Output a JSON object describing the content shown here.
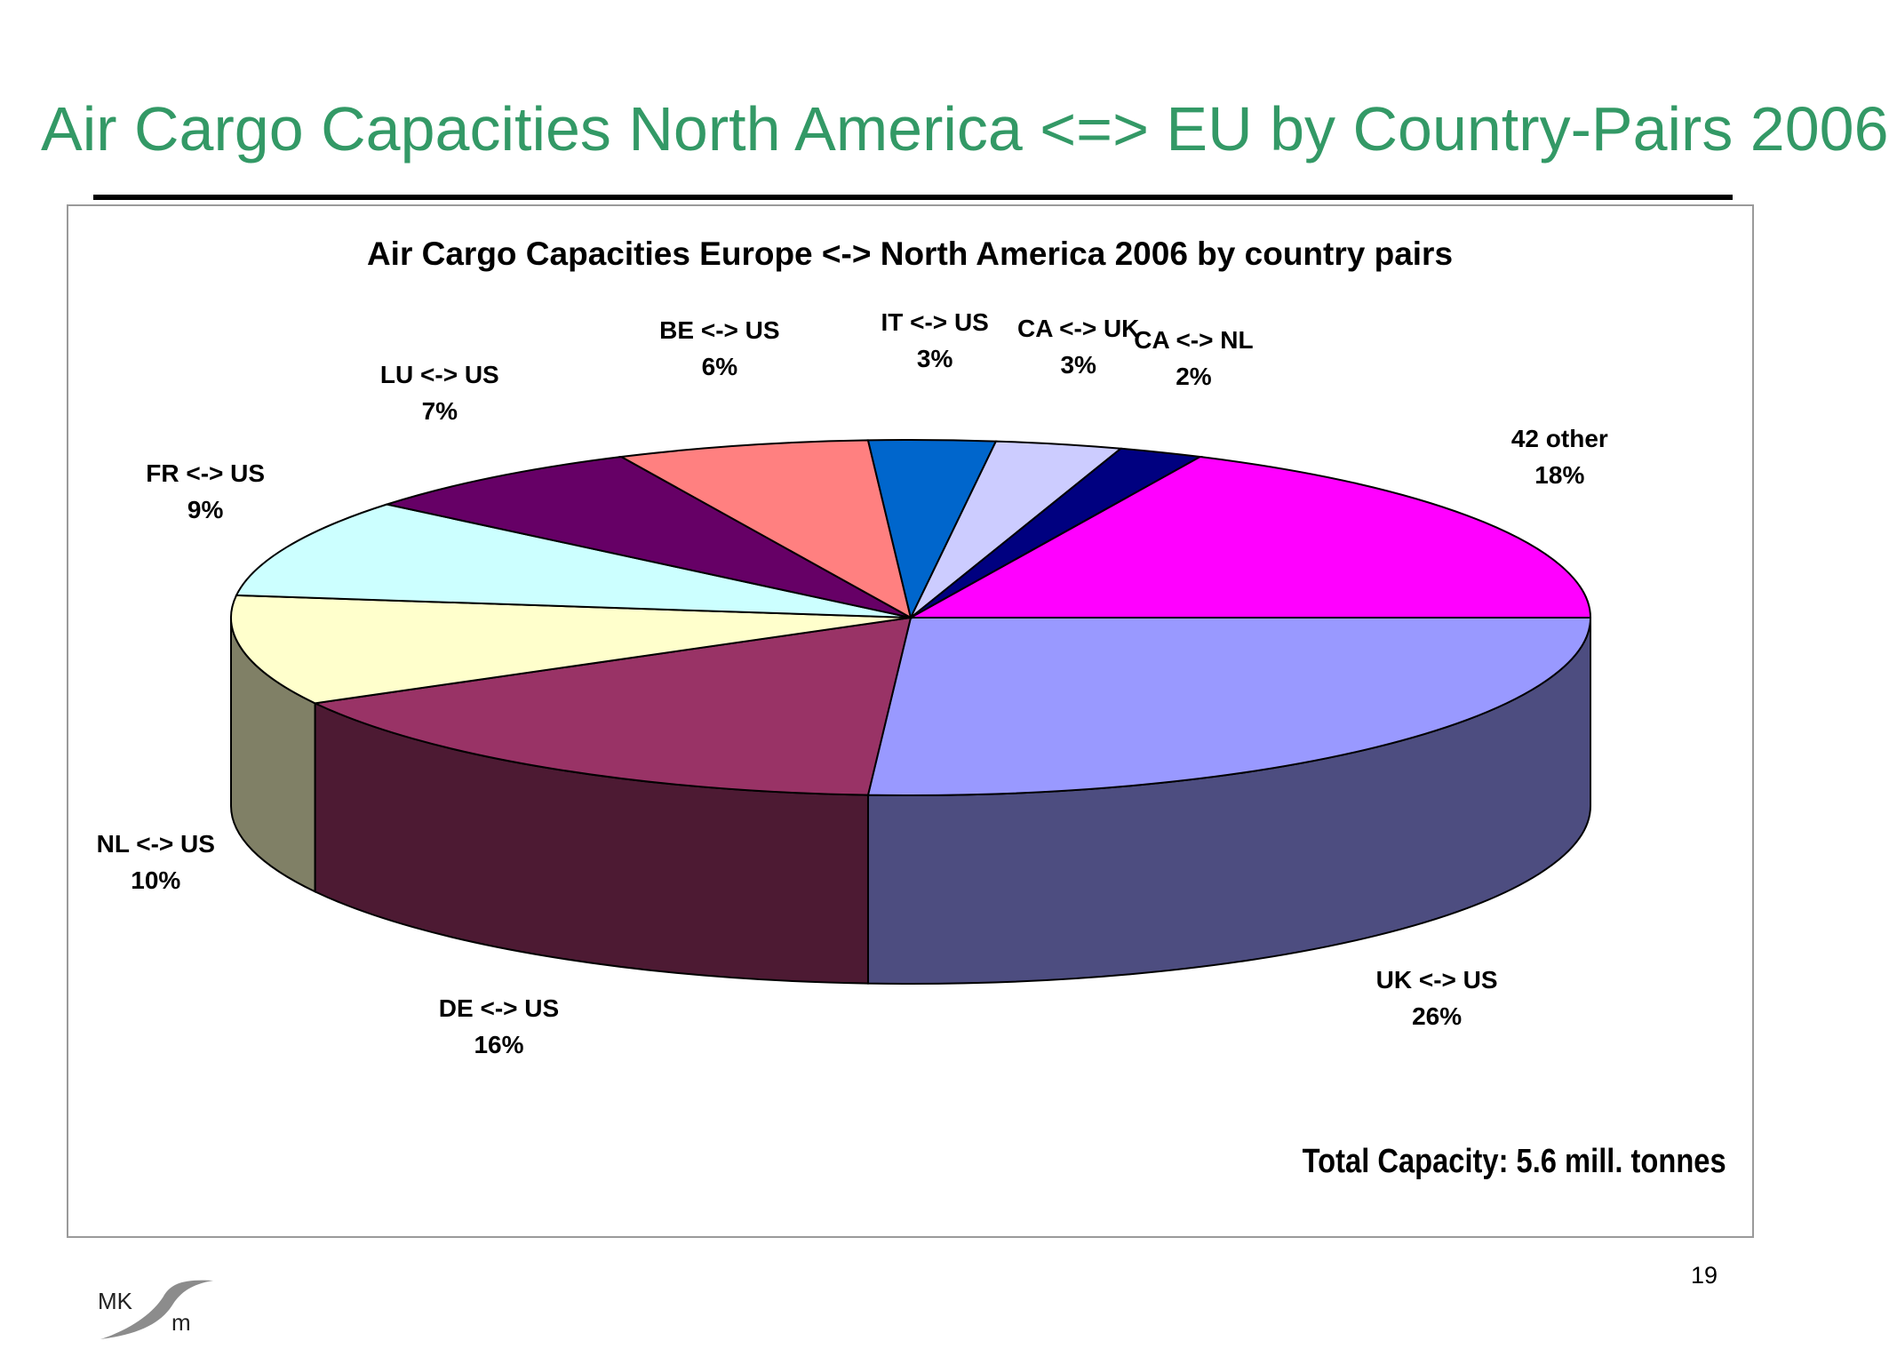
{
  "slide": {
    "title": "Air Cargo Capacities North America <=> EU by Country-Pairs 2006",
    "page_number": "19",
    "logo_text_left": "MK",
    "logo_text_right": "m"
  },
  "chart_data": {
    "type": "pie",
    "title": "Air Cargo Capacities Europe <-> North America 2006 by country pairs",
    "note": "Total Capacity: 5.6 mill. tonnes",
    "three_d": true,
    "slices": [
      {
        "name": "UK <-> US",
        "value": 26,
        "label": "26%",
        "color": "#9999FF"
      },
      {
        "name": "DE <-> US",
        "value": 16,
        "label": "16%",
        "color": "#993366"
      },
      {
        "name": "NL <-> US",
        "value": 10,
        "label": "10%",
        "color": "#FFFFCC"
      },
      {
        "name": "FR <-> US",
        "value": 9,
        "label": "9%",
        "color": "#CCFFFF"
      },
      {
        "name": "LU <-> US",
        "value": 7,
        "label": "7%",
        "color": "#660066"
      },
      {
        "name": "BE <-> US",
        "value": 6,
        "label": "6%",
        "color": "#FF8080"
      },
      {
        "name": "IT <-> US",
        "value": 3,
        "label": "3%",
        "color": "#0066CC"
      },
      {
        "name": "CA <-> UK",
        "value": 3,
        "label": "3%",
        "color": "#CCCCFF"
      },
      {
        "name": "CA <-> NL",
        "value": 2,
        "label": "2%",
        "color": "#000080"
      },
      {
        "name": "42 other",
        "value": 18,
        "label": "18%",
        "color": "#FF00FF"
      }
    ]
  }
}
